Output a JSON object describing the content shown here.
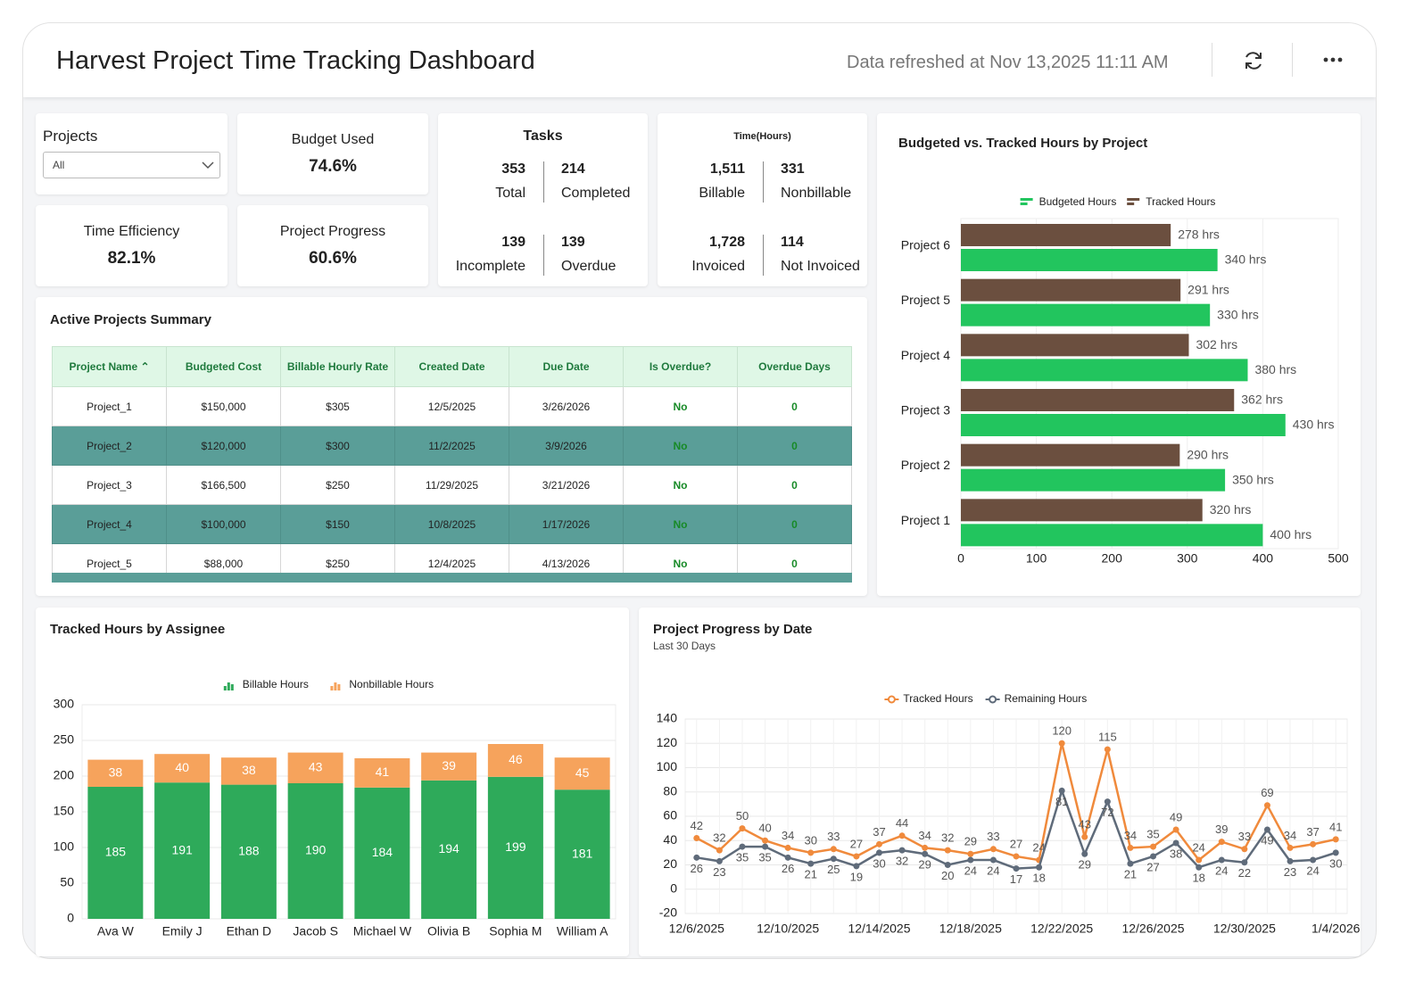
{
  "header": {
    "title": "Harvest Project Time Tracking Dashboard",
    "refreshed": "Data refreshed at Nov 13,2025 11:11 AM"
  },
  "filter": {
    "label": "Projects",
    "value": "All"
  },
  "kpis": [
    {
      "label": "Budget Used",
      "value": "74.6%"
    },
    {
      "label": "Time Efficiency",
      "value": "82.1%"
    },
    {
      "label": "Project Progress",
      "value": "60.6%"
    }
  ],
  "tasks": {
    "title": "Tasks",
    "items": [
      {
        "value": "353",
        "label": "Total"
      },
      {
        "value": "214",
        "label": "Completed"
      },
      {
        "value": "139",
        "label": "Incomplete"
      },
      {
        "value": "139",
        "label": "Overdue"
      }
    ]
  },
  "time": {
    "title": "Time(Hours)",
    "items": [
      {
        "value": "1,511",
        "label": "Billable"
      },
      {
        "value": "331",
        "label": "Nonbillable"
      },
      {
        "value": "1,728",
        "label": "Invoiced"
      },
      {
        "value": "114",
        "label": "Not Invoiced"
      }
    ]
  },
  "table": {
    "title": "Active Projects Summary",
    "columns": [
      "Project Name",
      "Budgeted Cost",
      "Billable Hourly Rate",
      "Created Date",
      "Due Date",
      "Is Overdue?",
      "Overdue Days"
    ],
    "rows": [
      [
        "Project_1",
        "$150,000",
        "$305",
        "12/5/2025",
        "3/26/2026",
        "No",
        "0"
      ],
      [
        "Project_2",
        "$120,000",
        "$300",
        "11/2/2025",
        "3/9/2026",
        "No",
        "0"
      ],
      [
        "Project_3",
        "$166,500",
        "$250",
        "11/29/2025",
        "3/21/2026",
        "No",
        "0"
      ],
      [
        "Project_4",
        "$100,000",
        "$150",
        "10/8/2025",
        "1/17/2026",
        "No",
        "0"
      ],
      [
        "Project_5",
        "$88,000",
        "$250",
        "12/4/2025",
        "4/13/2026",
        "No",
        "0"
      ]
    ]
  },
  "chart_data": [
    {
      "type": "hbar",
      "title": "Budgeted vs. Tracked Hours by Project",
      "categories": [
        "Project 6",
        "Project 5",
        "Project 4",
        "Project 3",
        "Project 2",
        "Project 1"
      ],
      "series": [
        {
          "name": "Budgeted Hours",
          "color": "#22c55e",
          "values": [
            340,
            330,
            380,
            430,
            350,
            400
          ],
          "value_labels": [
            "340 hrs",
            "330 hrs",
            "380 hrs",
            "430 hrs",
            "350 hrs",
            "400 hrs"
          ]
        },
        {
          "name": "Tracked Hours",
          "color": "#6b4f3f",
          "values": [
            278,
            291,
            302,
            362,
            290,
            320
          ],
          "value_labels": [
            "278 hrs",
            "291 hrs",
            "302 hrs",
            "362 hrs",
            "290 hrs",
            "320 hrs"
          ]
        }
      ],
      "xlim": [
        0,
        500
      ],
      "xticks": [
        0,
        100,
        200,
        300,
        400,
        500
      ],
      "grid": true,
      "legend": "top"
    },
    {
      "type": "stacked_bar",
      "title": "Tracked Hours by Assignee",
      "categories": [
        "Ava W",
        "Emily J",
        "Ethan D",
        "Jacob S",
        "Michael W",
        "Olivia B",
        "Sophia M",
        "William A"
      ],
      "series": [
        {
          "name": "Billable Hours",
          "color": "#2eaa5a",
          "values": [
            185,
            191,
            188,
            190,
            184,
            194,
            199,
            181
          ]
        },
        {
          "name": "Nonbillable Hours",
          "color": "#f6a35c",
          "values": [
            38,
            40,
            38,
            43,
            41,
            39,
            46,
            45
          ]
        }
      ],
      "ylim": [
        0,
        300
      ],
      "yticks": [
        0,
        50,
        100,
        150,
        200,
        250,
        300
      ],
      "grid": true,
      "legend": "top"
    },
    {
      "type": "line",
      "title": "Project Progress by Date",
      "subtitle": "Last 30 Days",
      "categories": [
        "12/6/2025",
        null,
        null,
        null,
        "12/10/2025",
        null,
        null,
        null,
        "12/14/2025",
        null,
        null,
        null,
        "12/18/2025",
        null,
        null,
        null,
        "12/22/2025",
        null,
        null,
        null,
        "12/26/2025",
        null,
        null,
        null,
        "12/30/2025",
        null,
        null,
        null,
        "1/4/2026"
      ],
      "series": [
        {
          "name": "Tracked Hours",
          "color": "#f08a3c",
          "values": [
            42,
            32,
            50,
            40,
            34,
            30,
            33,
            27,
            37,
            44,
            34,
            32,
            29,
            33,
            27,
            24,
            120,
            43,
            115,
            34,
            35,
            49,
            24,
            39,
            33,
            69,
            34,
            37,
            41
          ]
        },
        {
          "name": "Remaining Hours",
          "color": "#5f6b7a",
          "values": [
            26,
            23,
            35,
            35,
            26,
            21,
            25,
            19,
            30,
            32,
            29,
            20,
            24,
            24,
            17,
            18,
            81,
            29,
            72,
            21,
            27,
            38,
            18,
            24,
            22,
            49,
            23,
            24,
            30
          ]
        }
      ],
      "ylim": [
        -20,
        140
      ],
      "yticks": [
        -20,
        0,
        20,
        40,
        60,
        80,
        100,
        120,
        140
      ],
      "grid": true,
      "legend": "top"
    }
  ]
}
